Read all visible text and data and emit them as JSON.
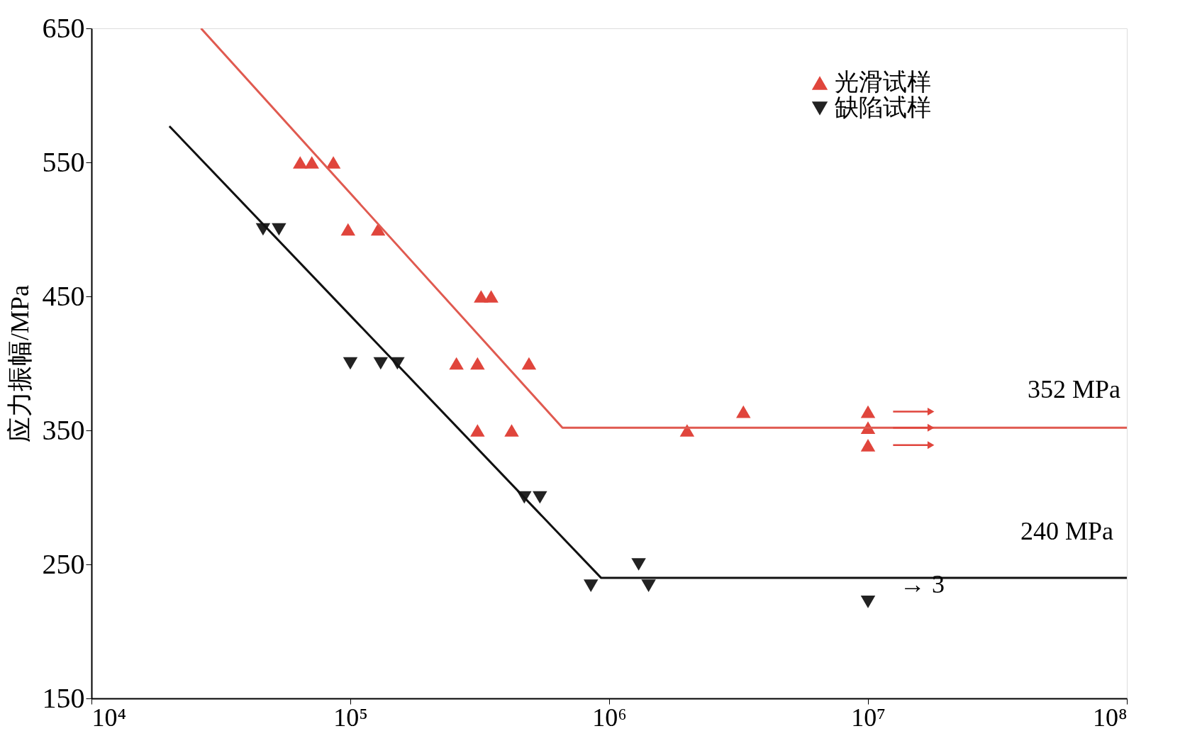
{
  "chart_data": {
    "type": "scatter",
    "ylabel": "应力振幅/MPa",
    "xlim": [
      10000,
      100000000
    ],
    "ylim": [
      150,
      650
    ],
    "xticks": [
      {
        "value": 10000,
        "label": "10⁴"
      },
      {
        "value": 100000,
        "label": "10⁵"
      },
      {
        "value": 1000000,
        "label": "10⁶"
      },
      {
        "value": 10000000,
        "label": "10⁷"
      },
      {
        "value": 100000000,
        "label": "10⁸"
      }
    ],
    "yticks": [
      150,
      250,
      350,
      450,
      550,
      650
    ],
    "log": "x",
    "grid": false,
    "legend": "top right",
    "series": [
      {
        "name": "光滑试样",
        "marker": "triangle",
        "color": "#e0453c",
        "x": [
          64000,
          71000,
          86000,
          98000,
          128000,
          320000,
          350000,
          257000,
          310000,
          490000,
          310000,
          420000,
          2000000,
          3300000,
          10000000,
          10000000,
          10000000
        ],
        "values": [
          550,
          550,
          550,
          500,
          500,
          450,
          450,
          400,
          400,
          400,
          350,
          350,
          350,
          364,
          364,
          352,
          339
        ]
      },
      {
        "name": "缺陷试样",
        "marker": "triangle-down",
        "color": "#222222",
        "x": [
          46000,
          53000,
          100000,
          131000,
          152000,
          470000,
          540000,
          850000,
          1300000,
          1420000,
          10000000
        ],
        "values": [
          500,
          500,
          400,
          400,
          400,
          300,
          300,
          234,
          250,
          234,
          222
        ]
      },
      {
        "type": "line",
        "color": "#e05a50",
        "x": [
          26500,
          660000,
          100000000
        ],
        "values": [
          650,
          352,
          352
        ]
      },
      {
        "type": "line",
        "color": "#111111",
        "x": [
          20000,
          930000,
          100000000
        ],
        "values": [
          577,
          240,
          240
        ]
      }
    ],
    "annotations": [
      "352 MPa",
      "240 MPa",
      "→ 3"
    ]
  }
}
